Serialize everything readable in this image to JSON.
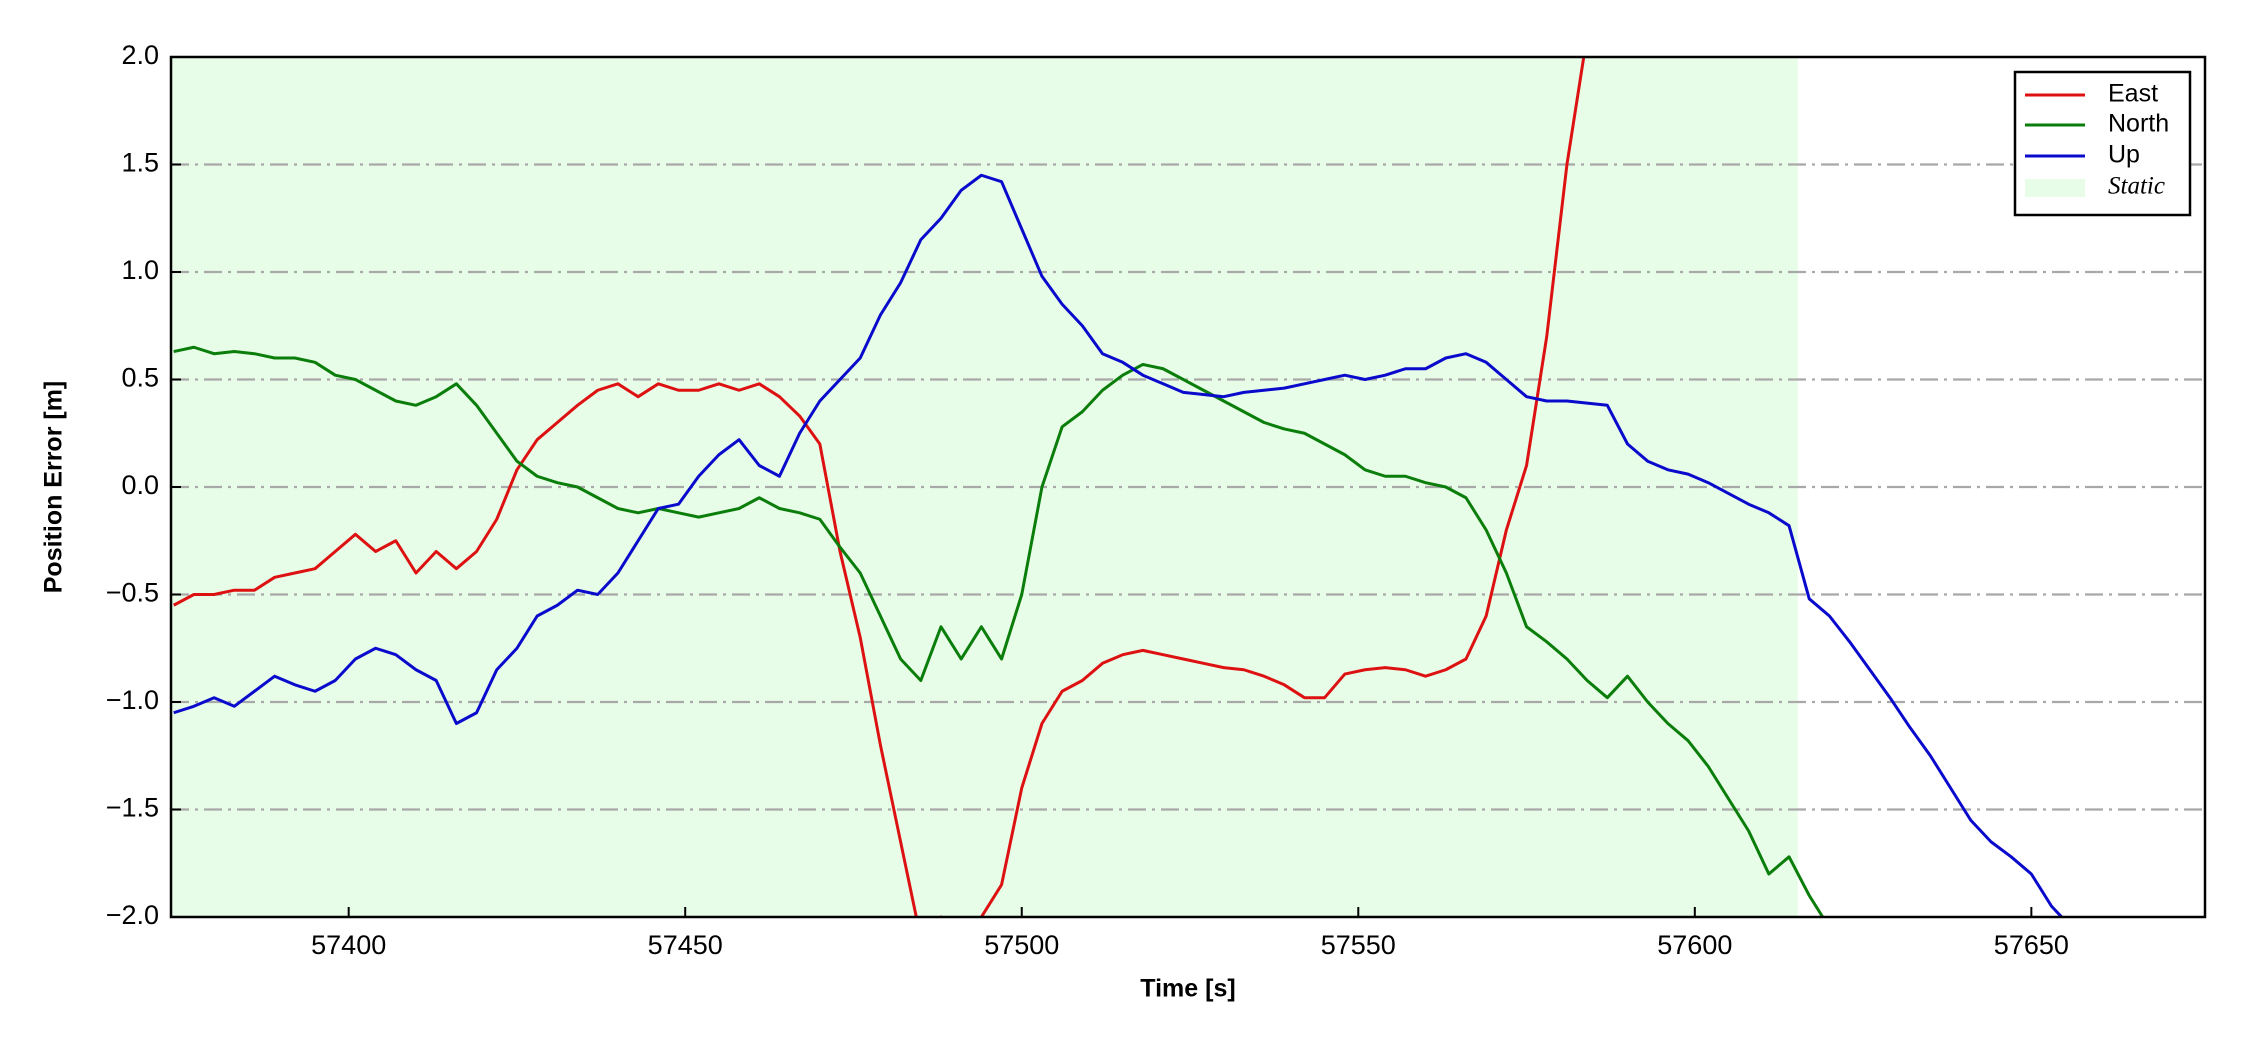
{
  "chart_data": {
    "type": "line",
    "xlabel": "Time [s]",
    "ylabel": "Position Error [m]",
    "xlim": [
      57373.6,
      57675.8
    ],
    "ylim": [
      -2.0,
      2.0
    ],
    "xticks": [
      57400,
      57450,
      57500,
      57550,
      57600,
      57650
    ],
    "yticks": [
      {
        "value": -2.0,
        "label": "−2.0"
      },
      {
        "value": -1.5,
        "label": "−1.5"
      },
      {
        "value": -1.0,
        "label": "−1.0"
      },
      {
        "value": -0.5,
        "label": "−0.5"
      },
      {
        "value": 0.0,
        "label": "0.0"
      },
      0.5,
      {
        "value": 1.0,
        "label": "1.0"
      },
      1.5,
      {
        "value": 2.0,
        "label": "2.0"
      }
    ],
    "grid": true,
    "legend": "upper right",
    "static_region": {
      "name": "Static",
      "color": "#e8fde8",
      "xrange": [
        57373.6,
        57615.3
      ]
    },
    "x": [
      57374,
      57377,
      57380,
      57383,
      57386,
      57389,
      57392,
      57395,
      57398,
      57401,
      57404,
      57407,
      57410,
      57413,
      57416,
      57419,
      57422,
      57425,
      57428,
      57431,
      57434,
      57437,
      57440,
      57443,
      57446,
      57449,
      57452,
      57455,
      57458,
      57461,
      57464,
      57467,
      57470,
      57473,
      57476,
      57479,
      57482,
      57485,
      57488,
      57491,
      57494,
      57497,
      57500,
      57503,
      57506,
      57509,
      57512,
      57515,
      57518,
      57521,
      57524,
      57527,
      57530,
      57533,
      57536,
      57539,
      57542,
      57545,
      57548,
      57551,
      57554,
      57557,
      57560,
      57563,
      57566,
      57569,
      57572,
      57575,
      57578,
      57581,
      57584,
      57587,
      57590,
      57593,
      57596,
      57599,
      57602,
      57605,
      57608,
      57611,
      57614,
      57617,
      57620,
      57623,
      57626,
      57629,
      57632,
      57635,
      57638,
      57641,
      57644,
      57647,
      57650,
      57653,
      57656
    ],
    "series": [
      {
        "name": "East",
        "color": "#dd1111",
        "values": [
          -0.55,
          -0.5,
          -0.5,
          -0.48,
          -0.48,
          -0.42,
          -0.4,
          -0.38,
          -0.3,
          -0.22,
          -0.3,
          -0.25,
          -0.4,
          -0.3,
          -0.38,
          -0.3,
          -0.15,
          0.08,
          0.22,
          0.3,
          0.38,
          0.45,
          0.48,
          0.42,
          0.48,
          0.45,
          0.45,
          0.48,
          0.45,
          0.48,
          0.42,
          0.33,
          0.2,
          -0.3,
          -0.7,
          -1.2,
          -1.65,
          -2.1,
          -2.0,
          -2.1,
          -2.0,
          -1.85,
          -1.4,
          -1.1,
          -0.95,
          -0.9,
          -0.82,
          -0.78,
          -0.76,
          -0.78,
          -0.8,
          -0.82,
          -0.84,
          -0.85,
          -0.88,
          -0.92,
          -0.98,
          -0.98,
          -0.87,
          -0.85,
          -0.84,
          -0.85,
          -0.88,
          -0.85,
          -0.8,
          -0.6,
          -0.2,
          0.1,
          0.7,
          1.5,
          2.1,
          null,
          null,
          null,
          null,
          null,
          null,
          null,
          null,
          null,
          null,
          null,
          null,
          null,
          null,
          null,
          null,
          null,
          null,
          null,
          null,
          null,
          null,
          null,
          null
        ]
      },
      {
        "name": "North",
        "color": "#0a7d0a",
        "values": [
          0.63,
          0.65,
          0.62,
          0.63,
          0.62,
          0.6,
          0.6,
          0.58,
          0.52,
          0.5,
          0.45,
          0.4,
          0.38,
          0.42,
          0.48,
          0.38,
          0.25,
          0.12,
          0.05,
          0.02,
          0.0,
          -0.05,
          -0.1,
          -0.12,
          -0.1,
          -0.12,
          -0.14,
          -0.12,
          -0.1,
          -0.05,
          -0.1,
          -0.12,
          -0.15,
          -0.28,
          -0.4,
          -0.6,
          -0.8,
          -0.9,
          -0.65,
          -0.8,
          -0.65,
          -0.8,
          -0.5,
          0.0,
          0.28,
          0.35,
          0.45,
          0.52,
          0.57,
          0.55,
          0.5,
          0.45,
          0.4,
          0.35,
          0.3,
          0.27,
          0.25,
          0.2,
          0.15,
          0.08,
          0.05,
          0.05,
          0.02,
          0.0,
          -0.05,
          -0.2,
          -0.4,
          -0.65,
          -0.72,
          -0.8,
          -0.9,
          -0.98,
          -0.88,
          -1.0,
          -1.1,
          -1.18,
          -1.3,
          -1.45,
          -1.6,
          -1.8,
          -1.72,
          -1.9,
          -2.05,
          null,
          null,
          null,
          null,
          null,
          null,
          null,
          null,
          null,
          null,
          null,
          null
        ]
      },
      {
        "name": "Up",
        "color": "#0a0acd",
        "values": [
          -1.05,
          -1.02,
          -0.98,
          -1.02,
          -0.95,
          -0.88,
          -0.92,
          -0.95,
          -0.9,
          -0.8,
          -0.75,
          -0.78,
          -0.85,
          -0.9,
          -1.1,
          -1.05,
          -0.85,
          -0.75,
          -0.6,
          -0.55,
          -0.48,
          -0.5,
          -0.4,
          -0.25,
          -0.1,
          -0.08,
          0.05,
          0.15,
          0.22,
          0.1,
          0.05,
          0.25,
          0.4,
          0.5,
          0.6,
          0.8,
          0.95,
          1.15,
          1.25,
          1.38,
          1.45,
          1.42,
          1.2,
          0.98,
          0.85,
          0.75,
          0.62,
          0.58,
          0.52,
          0.48,
          0.44,
          0.43,
          0.42,
          0.44,
          0.45,
          0.46,
          0.48,
          0.5,
          0.52,
          0.5,
          0.52,
          0.55,
          0.55,
          0.6,
          0.62,
          0.58,
          0.5,
          0.42,
          0.4,
          0.4,
          0.39,
          0.38,
          0.2,
          0.12,
          0.08,
          0.06,
          0.02,
          -0.03,
          -0.08,
          -0.12,
          -0.18,
          -0.52,
          -0.6,
          -0.72,
          -0.85,
          -0.98,
          -1.12,
          -1.25,
          -1.4,
          -1.55,
          -1.65,
          -1.72,
          -1.8,
          -1.95,
          -2.05
        ]
      }
    ]
  }
}
